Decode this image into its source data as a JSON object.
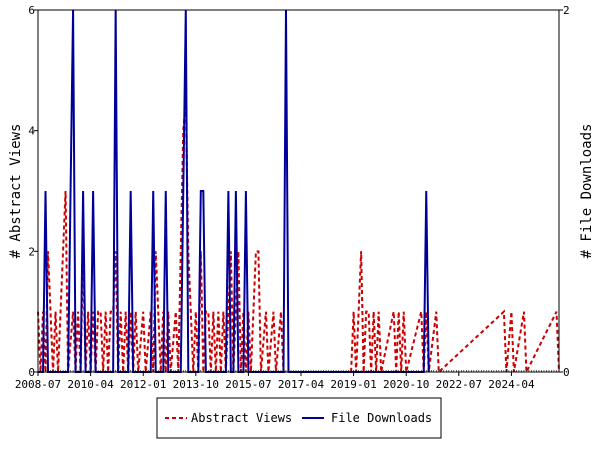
{
  "chart_data": {
    "type": "line",
    "left_axis": {
      "label": "# Abstract Views",
      "ticks": [
        "0",
        "2",
        "4",
        "6"
      ],
      "range": [
        0,
        6
      ]
    },
    "right_axis": {
      "label": "# File Downloads",
      "ticks": [
        "0",
        "2"
      ],
      "range": [
        0,
        2
      ]
    },
    "x_ticks": [
      "2008-07",
      "2010-04",
      "2012-01",
      "2013-10",
      "2015-07",
      "2017-04",
      "2019-01",
      "2020-10",
      "2022-07",
      "2024-04"
    ],
    "x_range": [
      "2008-07",
      "2025-11"
    ],
    "grid": false,
    "legend_position": "bottom-center",
    "series": [
      {
        "name": "Abstract Views",
        "axis": "left",
        "color": "#cc0000",
        "style": "dashed",
        "points": [
          [
            "2008-07",
            1
          ],
          [
            "2008-08",
            0
          ],
          [
            "2008-09",
            1
          ],
          [
            "2008-10",
            0
          ],
          [
            "2008-11",
            2
          ],
          [
            "2008-12",
            1
          ],
          [
            "2009-01",
            0
          ],
          [
            "2009-02",
            1
          ],
          [
            "2009-03",
            0
          ],
          [
            "2009-04",
            1
          ],
          [
            "2009-05",
            2
          ],
          [
            "2009-06",
            3
          ],
          [
            "2009-07",
            0
          ],
          [
            "2009-09",
            1
          ],
          [
            "2009-10",
            0
          ],
          [
            "2009-11",
            1
          ],
          [
            "2009-12",
            0
          ],
          [
            "2010-01",
            2
          ],
          [
            "2010-02",
            0
          ],
          [
            "2010-03",
            1
          ],
          [
            "2010-04",
            0
          ],
          [
            "2010-05",
            1
          ],
          [
            "2010-06",
            0
          ],
          [
            "2010-07",
            1
          ],
          [
            "2010-08",
            1
          ],
          [
            "2010-09",
            0
          ],
          [
            "2010-10",
            1
          ],
          [
            "2010-11",
            0
          ],
          [
            "2010-12",
            1
          ],
          [
            "2011-01",
            1
          ],
          [
            "2011-02",
            2
          ],
          [
            "2011-03",
            0
          ],
          [
            "2011-04",
            1
          ],
          [
            "2011-05",
            0
          ],
          [
            "2011-06",
            1
          ],
          [
            "2011-07",
            0
          ],
          [
            "2011-08",
            1
          ],
          [
            "2011-09",
            0
          ],
          [
            "2011-10",
            1
          ],
          [
            "2011-11",
            0
          ],
          [
            "2012-01",
            1
          ],
          [
            "2012-02",
            0
          ],
          [
            "2012-04",
            1
          ],
          [
            "2012-05",
            0
          ],
          [
            "2012-06",
            2
          ],
          [
            "2012-07",
            1
          ],
          [
            "2012-08",
            0
          ],
          [
            "2012-09",
            1
          ],
          [
            "2012-10",
            0
          ],
          [
            "2012-11",
            1
          ],
          [
            "2012-12",
            0
          ],
          [
            "2013-02",
            1
          ],
          [
            "2013-03",
            0
          ],
          [
            "2013-04",
            2
          ],
          [
            "2013-05",
            4
          ],
          [
            "2013-06",
            4.5
          ],
          [
            "2013-07",
            2
          ],
          [
            "2013-08",
            1
          ],
          [
            "2013-09",
            0
          ],
          [
            "2013-10",
            1
          ],
          [
            "2013-11",
            0
          ],
          [
            "2013-12",
            2
          ],
          [
            "2014-01",
            0
          ],
          [
            "2014-02",
            1
          ],
          [
            "2014-03",
            1
          ],
          [
            "2014-04",
            0
          ],
          [
            "2014-05",
            1
          ],
          [
            "2014-06",
            0
          ],
          [
            "2014-07",
            1
          ],
          [
            "2014-08",
            0
          ],
          [
            "2014-09",
            1
          ],
          [
            "2014-10",
            0
          ],
          [
            "2014-11",
            1
          ],
          [
            "2014-12",
            2
          ],
          [
            "2015-01",
            0
          ],
          [
            "2015-02",
            1
          ],
          [
            "2015-03",
            2
          ],
          [
            "2015-04",
            0
          ],
          [
            "2015-05",
            1
          ],
          [
            "2015-06",
            0
          ],
          [
            "2015-07",
            1
          ],
          [
            "2015-08",
            0
          ],
          [
            "2015-09",
            1
          ],
          [
            "2015-10",
            2
          ],
          [
            "2015-11",
            2
          ],
          [
            "2015-12",
            0
          ],
          [
            "2016-02",
            1
          ],
          [
            "2016-03",
            0
          ],
          [
            "2016-05",
            1
          ],
          [
            "2016-06",
            0
          ],
          [
            "2016-08",
            1
          ],
          [
            "2016-09",
            0
          ],
          [
            "2018-12",
            0
          ],
          [
            "2019-01",
            1
          ],
          [
            "2019-02",
            0
          ],
          [
            "2019-03",
            1
          ],
          [
            "2019-04",
            2
          ],
          [
            "2019-05",
            0
          ],
          [
            "2019-06",
            1
          ],
          [
            "2019-07",
            1
          ],
          [
            "2019-08",
            0
          ],
          [
            "2019-09",
            1
          ],
          [
            "2019-10",
            0
          ],
          [
            "2019-11",
            1
          ],
          [
            "2019-12",
            0
          ],
          [
            "2020-05",
            1
          ],
          [
            "2020-06",
            0
          ],
          [
            "2020-07",
            1
          ],
          [
            "2020-08",
            0
          ],
          [
            "2020-09",
            1
          ],
          [
            "2020-10",
            0
          ],
          [
            "2021-04",
            1
          ],
          [
            "2021-05",
            0
          ],
          [
            "2021-06",
            1
          ],
          [
            "2021-07",
            0
          ],
          [
            "2021-10",
            1
          ],
          [
            "2021-11",
            0
          ],
          [
            "2024-01",
            1
          ],
          [
            "2024-02",
            0
          ],
          [
            "2024-04",
            1
          ],
          [
            "2024-05",
            0
          ],
          [
            "2024-09",
            1
          ],
          [
            "2024-10",
            0
          ],
          [
            "2025-10",
            1
          ],
          [
            "2025-11",
            0
          ]
        ]
      },
      {
        "name": "File Downloads",
        "axis": "right",
        "color": "#000099",
        "style": "solid",
        "points": [
          [
            "2008-07",
            0
          ],
          [
            "2008-09",
            0
          ],
          [
            "2008-10",
            1
          ],
          [
            "2008-11",
            0
          ],
          [
            "2009-07",
            0
          ],
          [
            "2009-08",
            1
          ],
          [
            "2009-09",
            2
          ],
          [
            "2009-10",
            0
          ],
          [
            "2009-12",
            0
          ],
          [
            "2010-01",
            1
          ],
          [
            "2010-02",
            0
          ],
          [
            "2010-04",
            0
          ],
          [
            "2010-05",
            1
          ],
          [
            "2010-06",
            0
          ],
          [
            "2011-01",
            0
          ],
          [
            "2011-02",
            2
          ],
          [
            "2011-03",
            0
          ],
          [
            "2011-07",
            0
          ],
          [
            "2011-08",
            1
          ],
          [
            "2011-09",
            0
          ],
          [
            "2012-04",
            0
          ],
          [
            "2012-05",
            1
          ],
          [
            "2012-06",
            0
          ],
          [
            "2012-09",
            0
          ],
          [
            "2012-10",
            1
          ],
          [
            "2012-11",
            0
          ],
          [
            "2013-04",
            0
          ],
          [
            "2013-05",
            1
          ],
          [
            "2013-06",
            2
          ],
          [
            "2013-07",
            0
          ],
          [
            "2013-11",
            0
          ],
          [
            "2013-12",
            1
          ],
          [
            "2014-01",
            1
          ],
          [
            "2014-02",
            0
          ],
          [
            "2014-10",
            0
          ],
          [
            "2014-11",
            1
          ],
          [
            "2014-12",
            0
          ],
          [
            "2015-01",
            0
          ],
          [
            "2015-02",
            1
          ],
          [
            "2015-03",
            0
          ],
          [
            "2015-05",
            0
          ],
          [
            "2015-06",
            1
          ],
          [
            "2015-07",
            0
          ],
          [
            "2016-09",
            0
          ],
          [
            "2016-10",
            2
          ],
          [
            "2016-11",
            0
          ],
          [
            "2021-05",
            0
          ],
          [
            "2021-06",
            1
          ],
          [
            "2021-07",
            0
          ]
        ]
      }
    ]
  }
}
